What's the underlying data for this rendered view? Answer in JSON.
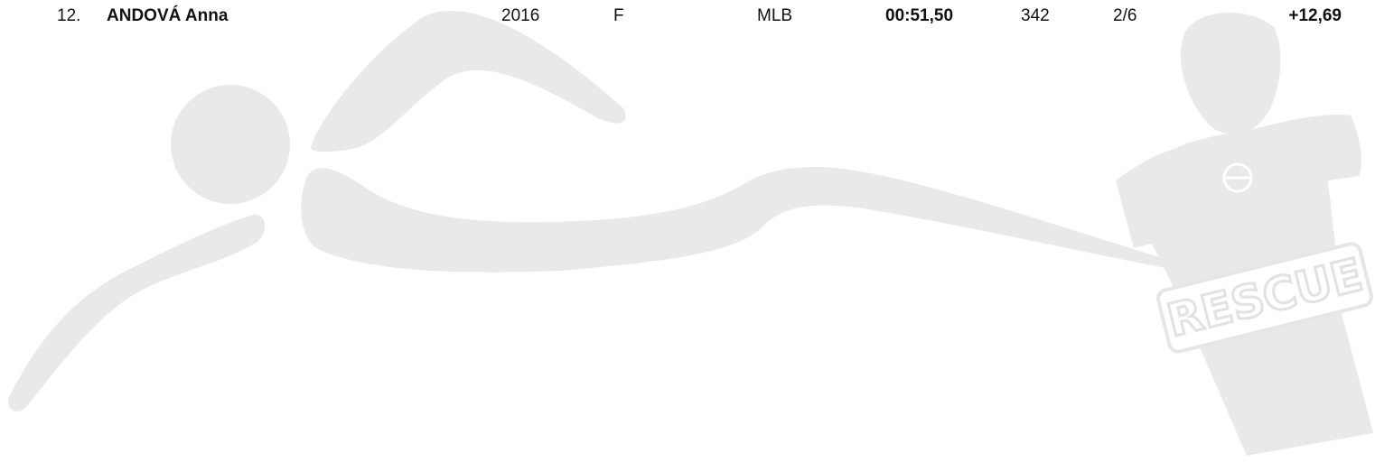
{
  "results_row": {
    "rank": "12.",
    "name": "ANDOVÁ Anna",
    "year": "2016",
    "gender": "F",
    "club": "MLB",
    "time": "00:51,50",
    "points": "342",
    "place": "2/6",
    "difference": "+12,69"
  }
}
